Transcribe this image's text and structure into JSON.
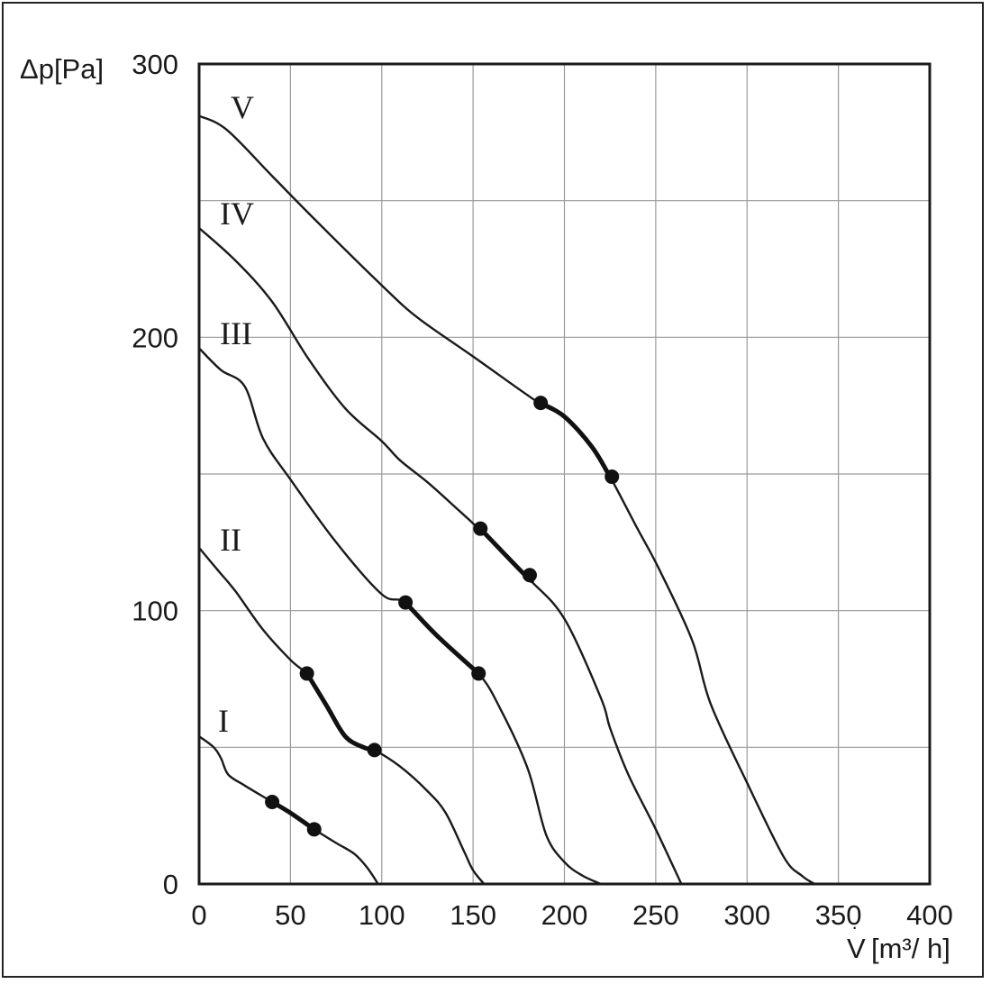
{
  "chart_data": {
    "type": "line",
    "ylabel": "Δp[Pa]",
    "xlabel_symbol": "V",
    "xlabel_unit": "[m³/ h]",
    "xlim": [
      0,
      400
    ],
    "ylim": [
      0,
      300
    ],
    "x_ticks": [
      "0",
      "50",
      "100",
      "150",
      "200",
      "250",
      "300",
      "350",
      "400"
    ],
    "y_ticks": [
      "0",
      "100",
      "200",
      "300"
    ],
    "grid": true,
    "series": [
      {
        "name": "I",
        "points": [
          [
            0,
            54
          ],
          [
            8,
            50
          ],
          [
            12,
            46
          ],
          [
            16,
            40
          ],
          [
            25,
            36
          ],
          [
            40,
            30
          ],
          [
            50,
            26
          ],
          [
            63,
            20
          ],
          [
            75,
            15
          ],
          [
            85,
            11
          ],
          [
            92,
            6
          ],
          [
            98,
            0
          ]
        ],
        "operating_range": [
          [
            40,
            30
          ],
          [
            63,
            20
          ]
        ]
      },
      {
        "name": "II",
        "points": [
          [
            0,
            123
          ],
          [
            10,
            115
          ],
          [
            20,
            107
          ],
          [
            35,
            93
          ],
          [
            50,
            82
          ],
          [
            60,
            76
          ],
          [
            70,
            65
          ],
          [
            80,
            54
          ],
          [
            90,
            50
          ],
          [
            96,
            49
          ],
          [
            110,
            43
          ],
          [
            125,
            34
          ],
          [
            135,
            26
          ],
          [
            145,
            12
          ],
          [
            150,
            5
          ],
          [
            156,
            0
          ]
        ],
        "operating_range": [
          [
            59,
            77
          ],
          [
            96,
            49
          ]
        ]
      },
      {
        "name": "III",
        "points": [
          [
            0,
            196
          ],
          [
            12,
            188
          ],
          [
            25,
            182
          ],
          [
            35,
            163
          ],
          [
            50,
            148
          ],
          [
            75,
            125
          ],
          [
            100,
            106
          ],
          [
            113,
            103
          ],
          [
            130,
            91
          ],
          [
            153,
            77
          ],
          [
            165,
            64
          ],
          [
            180,
            42
          ],
          [
            190,
            18
          ],
          [
            200,
            8
          ],
          [
            210,
            3
          ],
          [
            220,
            0
          ]
        ],
        "operating_range": [
          [
            113,
            103
          ],
          [
            153,
            77
          ]
        ]
      },
      {
        "name": "IV",
        "points": [
          [
            0,
            240
          ],
          [
            20,
            228
          ],
          [
            40,
            213
          ],
          [
            60,
            192
          ],
          [
            80,
            174
          ],
          [
            100,
            162
          ],
          [
            110,
            155
          ],
          [
            125,
            147
          ],
          [
            140,
            138
          ],
          [
            153,
            130
          ],
          [
            180,
            112
          ],
          [
            200,
            97
          ],
          [
            220,
            68
          ],
          [
            225,
            57
          ],
          [
            235,
            40
          ],
          [
            250,
            20
          ],
          [
            264,
            0
          ]
        ],
        "operating_range": [
          [
            154,
            130
          ],
          [
            181,
            113
          ]
        ]
      },
      {
        "name": "V",
        "points": [
          [
            0,
            281
          ],
          [
            15,
            276
          ],
          [
            40,
            259
          ],
          [
            65,
            242
          ],
          [
            100,
            219
          ],
          [
            120,
            207
          ],
          [
            150,
            193
          ],
          [
            186,
            176
          ],
          [
            200,
            171
          ],
          [
            215,
            160
          ],
          [
            225,
            149
          ],
          [
            240,
            130
          ],
          [
            252,
            115
          ],
          [
            270,
            89
          ],
          [
            280,
            66
          ],
          [
            300,
            37
          ],
          [
            320,
            10
          ],
          [
            330,
            3
          ],
          [
            337,
            0
          ]
        ],
        "operating_range": [
          [
            187,
            176
          ],
          [
            226,
            149
          ]
        ]
      }
    ]
  }
}
